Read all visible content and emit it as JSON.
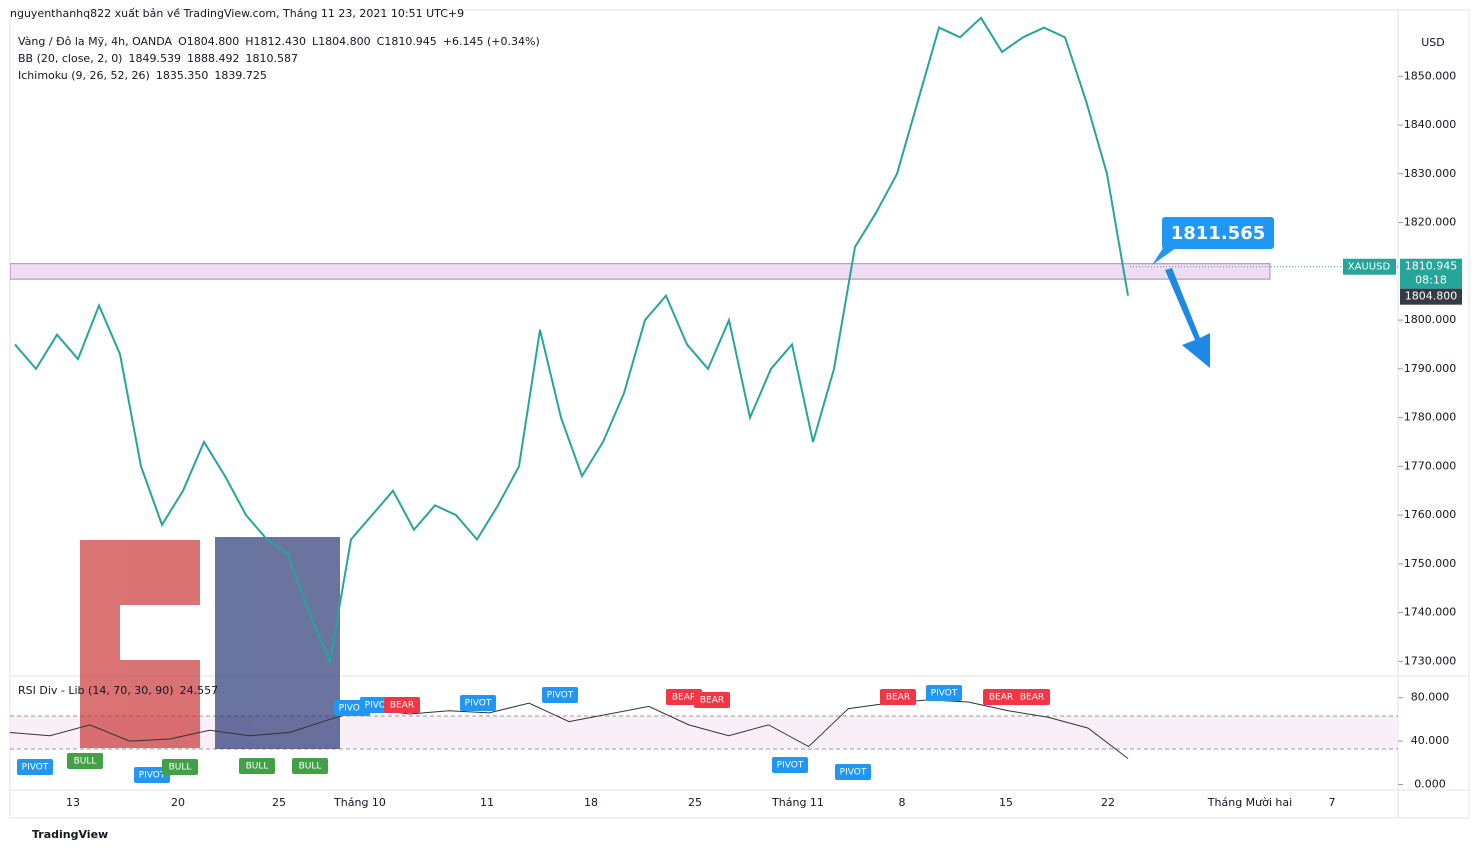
{
  "header": {
    "publisher": "nguyenthanhq822 xuất bản về TradingView.com, Tháng 11 23, 2021 10:51 UTC+9"
  },
  "legend": {
    "symbol": "Vàng / Đô la Mỹ, 4h, OANDA",
    "open": "O1804.800",
    "high": "H1812.430",
    "low": "L1804.800",
    "close": "C1810.945",
    "change": "+6.145 (+0.34%)",
    "bb": {
      "name": "BB (20, close, 2, 0)",
      "basis": "1849.539",
      "upper": "1888.492",
      "lower": "1810.587"
    },
    "ichimoku": {
      "name": "Ichimoku (9, 26, 52, 26)",
      "lead1": "1835.350",
      "lead2": "1839.725"
    },
    "rsi": {
      "name": "RSI Div - Lib (14, 70, 30, 90)",
      "value": "24.557"
    }
  },
  "price_axis": {
    "currency": "USD",
    "ylim": [
      1727,
      1863.6
    ],
    "ticks": [
      {
        "value": 1850,
        "label": "1850.000"
      },
      {
        "value": 1840,
        "label": "1840.000"
      },
      {
        "value": 1830,
        "label": "1830.000"
      },
      {
        "value": 1820,
        "label": "1820.000"
      },
      {
        "value": 1800,
        "label": "1800.000"
      },
      {
        "value": 1790,
        "label": "1790.000"
      },
      {
        "value": 1780,
        "label": "1780.000"
      },
      {
        "value": 1770,
        "label": "1770.000"
      },
      {
        "value": 1760,
        "label": "1760.000"
      },
      {
        "value": 1750,
        "label": "1750.000"
      },
      {
        "value": 1740,
        "label": "1740.000"
      },
      {
        "value": 1730,
        "label": "1730.000"
      }
    ],
    "symbol_tag": "XAUUSD",
    "last": {
      "value": 1810.945,
      "label": "1810.945"
    },
    "countdown": "08:18",
    "prev": {
      "value": 1804.8,
      "label": "1804.800"
    }
  },
  "rsi_axis": {
    "ylim": [
      -5,
      100
    ],
    "ticks": [
      {
        "value": 80,
        "label": "80.000"
      },
      {
        "value": 40,
        "label": "40.000"
      },
      {
        "value": 0,
        "label": "0.000"
      }
    ]
  },
  "time_axis": {
    "labels": [
      "13",
      "20",
      "25",
      "Tháng 10",
      "11",
      "18",
      "25",
      "Tháng 11",
      "8",
      "15",
      "22",
      "Tháng Mười hai",
      "7"
    ]
  },
  "price": [
    1795,
    1790,
    1797,
    1792,
    1803,
    1793,
    1770,
    1758,
    1765,
    1775,
    1768,
    1760,
    1755,
    1752,
    1740,
    1730,
    1755,
    1760,
    1765,
    1757,
    1762,
    1760,
    1755,
    1762,
    1770,
    1798,
    1780,
    1768,
    1775,
    1785,
    1800,
    1805,
    1795,
    1790,
    1800,
    1780,
    1790,
    1795,
    1775,
    1790,
    1815,
    1822,
    1830,
    1845,
    1860,
    1858,
    1862,
    1855,
    1858,
    1860,
    1858,
    1845,
    1830,
    1805
  ],
  "rsi": [
    48,
    45,
    55,
    40,
    42,
    50,
    45,
    48,
    60,
    70,
    65,
    68,
    66,
    75,
    58,
    65,
    72,
    55,
    45,
    55,
    35,
    70,
    75,
    78,
    76,
    68,
    62,
    52,
    24
  ],
  "zone": {
    "low": 1808.4,
    "high": 1811.565,
    "label": "1811.565"
  },
  "rsi_labels": [
    "PIVOT",
    "BULL",
    "PIVOT",
    "BULL",
    "BULL",
    "BULL",
    "PIVOT",
    "PIVOT",
    "BEAR",
    "PIVOT",
    "PIVOT",
    "BEAR",
    "BEAR",
    "PIVOT",
    "PIVOT",
    "BEAR",
    "PIVOT",
    "BEAR",
    "BEAR"
  ],
  "footer": {
    "brand": "TradingView"
  }
}
